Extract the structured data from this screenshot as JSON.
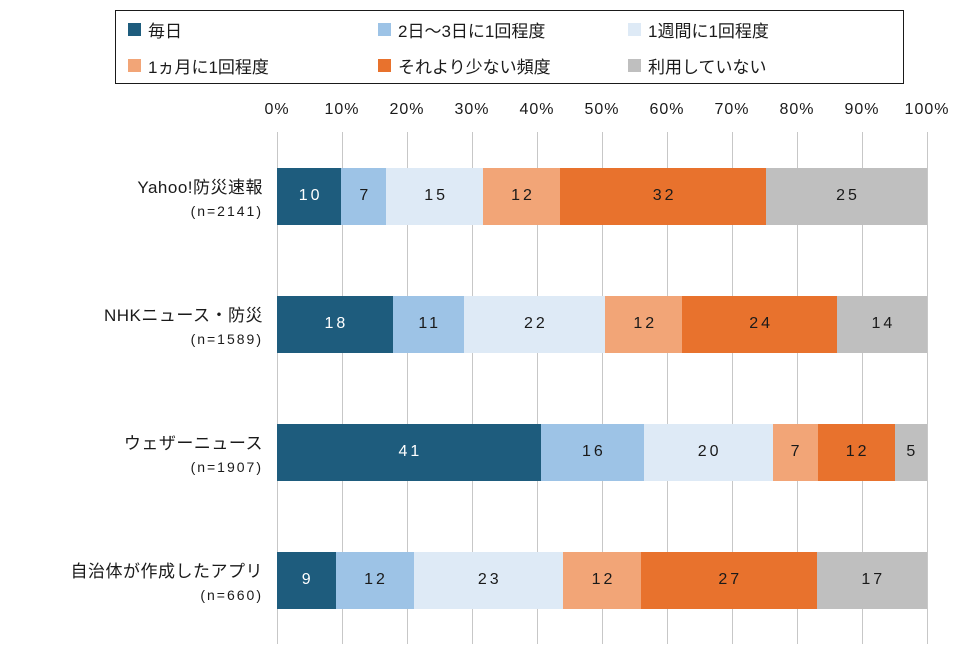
{
  "chart_data": {
    "type": "bar",
    "subtype": "horizontal-stacked",
    "title": "",
    "xlabel": "",
    "ylabel": "",
    "xlim": [
      0,
      100
    ],
    "grid": "vertical",
    "legend_position": "top",
    "x_ticks": [
      "0%",
      "10%",
      "20%",
      "30%",
      "40%",
      "50%",
      "60%",
      "70%",
      "80%",
      "90%",
      "100%"
    ],
    "categories": [
      {
        "label": "Yahoo!防災速報",
        "n_label": "(n=2141)"
      },
      {
        "label": "NHKニュース・防災",
        "n_label": "(n=1589)"
      },
      {
        "label": "ウェザーニュース",
        "n_label": "(n=1907)"
      },
      {
        "label": "自治体が作成したアプリ",
        "n_label": "(n=660)"
      }
    ],
    "series": [
      {
        "name": "毎日",
        "color": "#1E5C7D",
        "text_color": "#ffffff",
        "values": [
          10,
          18,
          41,
          9
        ]
      },
      {
        "name": "2日〜3日に1回程度",
        "color": "#9DC3E6",
        "text_color": "#1a1a1a",
        "values": [
          7,
          11,
          16,
          12
        ]
      },
      {
        "name": "1週間に1回程度",
        "color": "#DEEAF6",
        "text_color": "#1a1a1a",
        "values": [
          15,
          22,
          20,
          23
        ]
      },
      {
        "name": "1ヵ月に1回程度",
        "color": "#F2A577",
        "text_color": "#1a1a1a",
        "values": [
          12,
          12,
          7,
          12
        ]
      },
      {
        "name": "それより少ない頻度",
        "color": "#E8722D",
        "text_color": "#1a1a1a",
        "values": [
          32,
          24,
          12,
          27
        ]
      },
      {
        "name": "利用していない",
        "color": "#BFBFBF",
        "text_color": "#1a1a1a",
        "values": [
          25,
          14,
          5,
          17
        ]
      }
    ]
  }
}
